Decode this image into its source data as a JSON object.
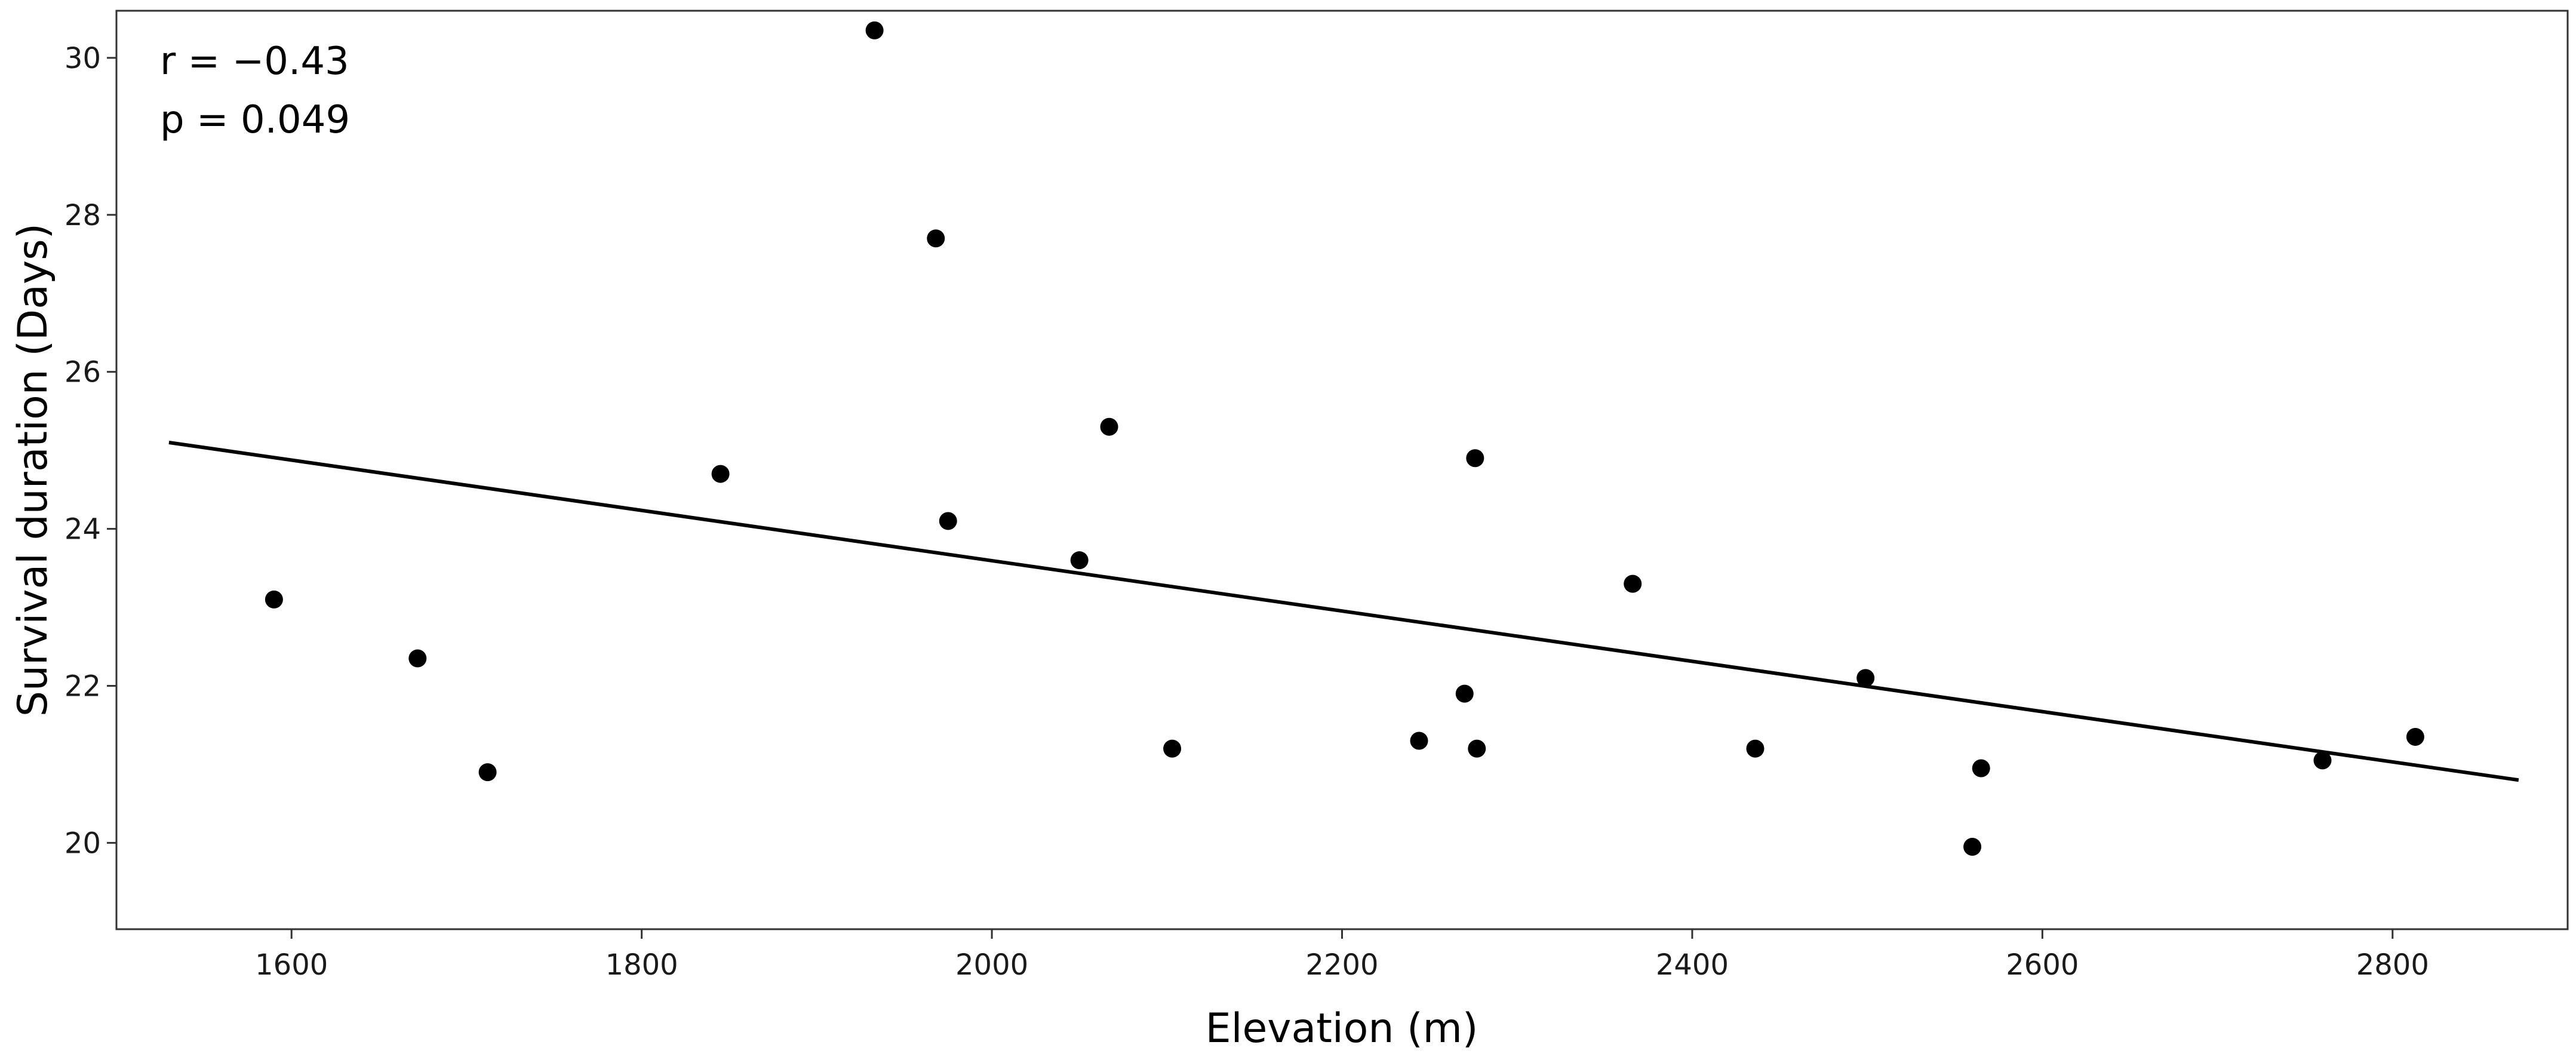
{
  "chart_data": {
    "type": "scatter",
    "title": "",
    "xlabel": "Elevation (m)",
    "ylabel": "Survival duration (Days)",
    "xlim": [
      1500,
      2900
    ],
    "ylim": [
      18.9,
      30.6
    ],
    "xticks": [
      1600,
      1800,
      2000,
      2200,
      2400,
      2600,
      2800
    ],
    "yticks": [
      20,
      22,
      24,
      26,
      28,
      30
    ],
    "grid": false,
    "annotations": [
      "r = −0.43",
      "p = 0.049"
    ],
    "points": [
      {
        "x": 1590,
        "y": 23.1
      },
      {
        "x": 1672,
        "y": 22.35
      },
      {
        "x": 1712,
        "y": 20.9
      },
      {
        "x": 1845,
        "y": 24.7
      },
      {
        "x": 1933,
        "y": 30.35
      },
      {
        "x": 1968,
        "y": 27.7
      },
      {
        "x": 1975,
        "y": 24.1
      },
      {
        "x": 2050,
        "y": 23.6
      },
      {
        "x": 2067,
        "y": 25.3
      },
      {
        "x": 2103,
        "y": 21.2
      },
      {
        "x": 2244,
        "y": 21.3
      },
      {
        "x": 2270,
        "y": 21.9
      },
      {
        "x": 2276,
        "y": 24.9
      },
      {
        "x": 2277,
        "y": 21.2
      },
      {
        "x": 2366,
        "y": 23.3
      },
      {
        "x": 2436,
        "y": 21.2
      },
      {
        "x": 2499,
        "y": 22.1
      },
      {
        "x": 2560,
        "y": 19.95
      },
      {
        "x": 2565,
        "y": 20.95
      },
      {
        "x": 2760,
        "y": 21.05
      },
      {
        "x": 2813,
        "y": 21.35
      }
    ],
    "trendline": {
      "x": [
        1530,
        2872
      ],
      "y": [
        25.1,
        20.8
      ]
    },
    "colors": {
      "points": "#000000",
      "line": "#000000",
      "frame": "#333333"
    }
  }
}
